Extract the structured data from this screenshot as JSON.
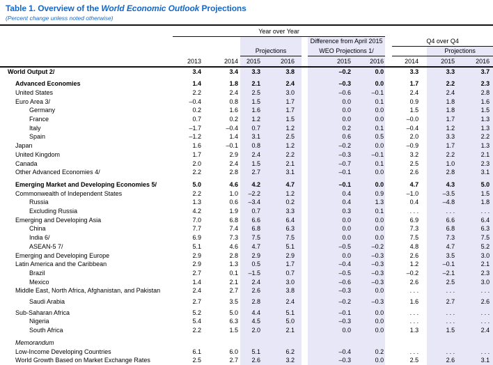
{
  "title": {
    "prefix": "Table 1. Overview of the ",
    "emphasis": "World Economic Outlook",
    "suffix": " Projections"
  },
  "subtitle": "(Percent change unless noted otherwise)",
  "colors": {
    "title_blue": "#1567c8",
    "band_fill": "#e7e7f7",
    "rule": "#111111"
  },
  "header": {
    "group_yoy": "Year over Year",
    "projections_yoy": "Projections",
    "diff_line1": "Difference from April 2015",
    "diff_line2": "WEO Projections 1/",
    "group_q4": "Q4 over Q4",
    "projections_q4": "Projections",
    "years": [
      "2013",
      "2014",
      "2015",
      "2016",
      "2015",
      "2016",
      "2014",
      "2015",
      "2016"
    ]
  },
  "rows": [
    {
      "label": "World Output 2/",
      "indent": 0,
      "bold": true,
      "values": [
        "3.4",
        "3.4",
        "3.3",
        "3.8",
        "–0.2",
        "0.0",
        "3.3",
        "3.3",
        "3.7"
      ]
    },
    {
      "label": "Advanced Economies",
      "indent": 1,
      "bold": true,
      "space": true,
      "values": [
        "1.4",
        "1.8",
        "2.1",
        "2.4",
        "–0.3",
        "0.0",
        "1.7",
        "2.2",
        "2.3"
      ]
    },
    {
      "label": "United States",
      "indent": 1,
      "values": [
        "2.2",
        "2.4",
        "2.5",
        "3.0",
        "–0.6",
        "–0.1",
        "2.4",
        "2.4",
        "2.8"
      ]
    },
    {
      "label": "Euro Area 3/",
      "indent": 1,
      "values": [
        "–0.4",
        "0.8",
        "1.5",
        "1.7",
        "0.0",
        "0.1",
        "0.9",
        "1.8",
        "1.6"
      ]
    },
    {
      "label": "Germany",
      "indent": 2,
      "values": [
        "0.2",
        "1.6",
        "1.6",
        "1.7",
        "0.0",
        "0.0",
        "1.5",
        "1.8",
        "1.5"
      ]
    },
    {
      "label": "France",
      "indent": 2,
      "values": [
        "0.7",
        "0.2",
        "1.2",
        "1.5",
        "0.0",
        "0.0",
        "–0.0",
        "1.7",
        "1.3"
      ]
    },
    {
      "label": "Italy",
      "indent": 2,
      "values": [
        "–1.7",
        "–0.4",
        "0.7",
        "1.2",
        "0.2",
        "0.1",
        "–0.4",
        "1.2",
        "1.3"
      ]
    },
    {
      "label": "Spain",
      "indent": 2,
      "values": [
        "–1.2",
        "1.4",
        "3.1",
        "2.5",
        "0.6",
        "0.5",
        "2.0",
        "3.3",
        "2.2"
      ]
    },
    {
      "label": "Japan",
      "indent": 1,
      "values": [
        "1.6",
        "–0.1",
        "0.8",
        "1.2",
        "–0.2",
        "0.0",
        "–0.9",
        "1.7",
        "1.3"
      ]
    },
    {
      "label": "United Kingdom",
      "indent": 1,
      "values": [
        "1.7",
        "2.9",
        "2.4",
        "2.2",
        "–0.3",
        "–0.1",
        "3.2",
        "2.2",
        "2.1"
      ]
    },
    {
      "label": "Canada",
      "indent": 1,
      "values": [
        "2.0",
        "2.4",
        "1.5",
        "2.1",
        "–0.7",
        "0.1",
        "2.5",
        "1.0",
        "2.3"
      ]
    },
    {
      "label": "Other Advanced Economies 4/",
      "indent": 1,
      "values": [
        "2.2",
        "2.8",
        "2.7",
        "3.1",
        "–0.1",
        "0.0",
        "2.6",
        "2.8",
        "3.1"
      ]
    },
    {
      "label": "Emerging Market and Developing Economies 5/",
      "indent": 1,
      "bold": true,
      "space": true,
      "values": [
        "5.0",
        "4.6",
        "4.2",
        "4.7",
        "–0.1",
        "0.0",
        "4.7",
        "4.3",
        "5.0"
      ]
    },
    {
      "label": "Commonwealth of Independent States",
      "indent": 1,
      "values": [
        "2.2",
        "1.0",
        "–2.2",
        "1.2",
        "0.4",
        "0.9",
        "–1.0",
        "–3.5",
        "1.5"
      ]
    },
    {
      "label": "Russia",
      "indent": 2,
      "values": [
        "1.3",
        "0.6",
        "–3.4",
        "0.2",
        "0.4",
        "1.3",
        "0.4",
        "–4.8",
        "1.8"
      ]
    },
    {
      "label": "Excluding Russia",
      "indent": 2,
      "values": [
        "4.2",
        "1.9",
        "0.7",
        "3.3",
        "0.3",
        "0.1",
        ". . .",
        ". . .",
        ". . ."
      ]
    },
    {
      "label": "Emerging and Developing Asia",
      "indent": 1,
      "values": [
        "7.0",
        "6.8",
        "6.6",
        "6.4",
        "0.0",
        "0.0",
        "6.9",
        "6.6",
        "6.4"
      ]
    },
    {
      "label": "China",
      "indent": 2,
      "values": [
        "7.7",
        "7.4",
        "6.8",
        "6.3",
        "0.0",
        "0.0",
        "7.3",
        "6.8",
        "6.3"
      ]
    },
    {
      "label": "India 6/",
      "indent": 2,
      "values": [
        "6.9",
        "7.3",
        "7.5",
        "7.5",
        "0.0",
        "0.0",
        "7.5",
        "7.3",
        "7.5"
      ]
    },
    {
      "label": "ASEAN-5 7/",
      "indent": 2,
      "values": [
        "5.1",
        "4.6",
        "4.7",
        "5.1",
        "–0.5",
        "–0.2",
        "4.8",
        "4.7",
        "5.2"
      ]
    },
    {
      "label": "Emerging and Developing Europe",
      "indent": 1,
      "values": [
        "2.9",
        "2.8",
        "2.9",
        "2.9",
        "0.0",
        "–0.3",
        "2.6",
        "3.5",
        "3.0"
      ]
    },
    {
      "label": "Latin America and the Caribbean",
      "indent": 1,
      "values": [
        "2.9",
        "1.3",
        "0.5",
        "1.7",
        "–0.4",
        "–0.3",
        "1.2",
        "–0.1",
        "2.1"
      ]
    },
    {
      "label": "Brazil",
      "indent": 2,
      "values": [
        "2.7",
        "0.1",
        "–1.5",
        "0.7",
        "–0.5",
        "–0.3",
        "–0.2",
        "–2.1",
        "2.3"
      ]
    },
    {
      "label": "Mexico",
      "indent": 2,
      "values": [
        "1.4",
        "2.1",
        "2.4",
        "3.0",
        "–0.6",
        "–0.3",
        "2.6",
        "2.5",
        "3.0"
      ]
    },
    {
      "label": "Middle East, North Africa, Afghanistan, and Pakistan",
      "indent": 1,
      "values": [
        "2.4",
        "2.7",
        "2.6",
        "3.8",
        "–0.3",
        "0.0",
        ". . .",
        ". . .",
        ". . ."
      ]
    },
    {
      "label": "Saudi Arabia",
      "indent": 2,
      "space_sm": true,
      "values": [
        "2.7",
        "3.5",
        "2.8",
        "2.4",
        "–0.2",
        "–0.3",
        "1.6",
        "2.7",
        "2.6"
      ]
    },
    {
      "label": "Sub-Saharan Africa",
      "indent": 1,
      "space_sm": true,
      "values": [
        "5.2",
        "5.0",
        "4.4",
        "5.1",
        "–0.1",
        "0.0",
        ". . .",
        ". . .",
        ". . ."
      ]
    },
    {
      "label": "Nigeria",
      "indent": 2,
      "values": [
        "5.4",
        "6.3",
        "4.5",
        "5.0",
        "–0.3",
        "0.0",
        ". . .",
        ". . .",
        ". . ."
      ]
    },
    {
      "label": "South Africa",
      "indent": 2,
      "values": [
        "2.2",
        "1.5",
        "2.0",
        "2.1",
        "0.0",
        "0.0",
        "1.3",
        "1.5",
        "2.4"
      ]
    },
    {
      "label": "Memorandum",
      "indent": 1,
      "italic": true,
      "space": true,
      "values": [
        "",
        "",
        "",
        "",
        "",
        "",
        "",
        "",
        ""
      ]
    },
    {
      "label": "Low-Income Developing Countries",
      "indent": 1,
      "values": [
        "6.1",
        "6.0",
        "5.1",
        "6.2",
        "–0.4",
        "0.2",
        ". . .",
        ". . .",
        ". . ."
      ]
    },
    {
      "label": "World Growth Based on Market Exchange Rates",
      "indent": 1,
      "values": [
        "2.5",
        "2.7",
        "2.6",
        "3.2",
        "–0.3",
        "0.0",
        "2.5",
        "2.6",
        "3.1"
      ]
    }
  ]
}
